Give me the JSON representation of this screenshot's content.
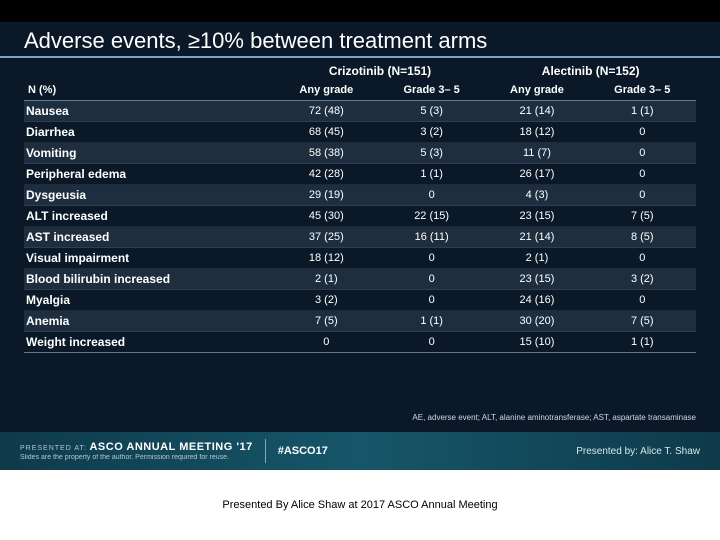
{
  "title": "Adverse events, ≥10% between treatment arms",
  "colors": {
    "slide_bg": "#0a1828",
    "title_rule": "#7aa5c4",
    "text": "#ffffff",
    "stripe": "rgba(120,150,170,0.18)",
    "banner_grad_left": "#0e3a4a",
    "banner_grad_mid": "#16566a"
  },
  "table": {
    "n_label": "N (%)",
    "groups": [
      {
        "label": "Crizotinib (N=151)"
      },
      {
        "label": "Alectinib (N=152)"
      }
    ],
    "subcols": [
      "Any grade",
      "Grade  3– 5",
      "Any grade",
      "Grade 3– 5"
    ],
    "rows": [
      {
        "label": "Nausea",
        "cells": [
          "72 (48)",
          "5 (3)",
          "21 (14)",
          "1 (1)"
        ],
        "striped": true
      },
      {
        "label": "Diarrhea",
        "cells": [
          "68 (45)",
          "3 (2)",
          "18 (12)",
          "0"
        ],
        "striped": false
      },
      {
        "label": "Vomiting",
        "cells": [
          "58 (38)",
          "5 (3)",
          "11 (7)",
          "0"
        ],
        "striped": true
      },
      {
        "label": "Peripheral edema",
        "cells": [
          "42 (28)",
          "1 (1)",
          "26 (17)",
          "0"
        ],
        "striped": false
      },
      {
        "label": "Dysgeusia",
        "cells": [
          "29 (19)",
          "0",
          "4 (3)",
          "0"
        ],
        "striped": true
      },
      {
        "label": "ALT increased",
        "cells": [
          "45 (30)",
          "22 (15)",
          "23 (15)",
          "7 (5)"
        ],
        "striped": false
      },
      {
        "label": "AST increased",
        "cells": [
          "37 (25)",
          "16 (11)",
          "21 (14)",
          "8 (5)"
        ],
        "striped": true
      },
      {
        "label": "Visual impairment",
        "cells": [
          "18 (12)",
          "0",
          "2 (1)",
          "0"
        ],
        "striped": false
      },
      {
        "label": "Blood bilirubin increased",
        "cells": [
          "2 (1)",
          "0",
          "23 (15)",
          "3 (2)"
        ],
        "striped": true
      },
      {
        "label": "Myalgia",
        "cells": [
          "3 (2)",
          "0",
          "24 (16)",
          "0"
        ],
        "striped": false
      },
      {
        "label": "Anemia",
        "cells": [
          "7 (5)",
          "1 (1)",
          "30 (20)",
          "7 (5)"
        ],
        "striped": true
      },
      {
        "label": "Weight increased",
        "cells": [
          "0",
          "0",
          "15 (10)",
          "1 (1)"
        ],
        "striped": false
      }
    ]
  },
  "footnote": "AE, adverse event; ALT, alanine aminotransferase; AST, aspartate transaminase",
  "banner": {
    "presented_at_label": "PRESENTED AT:",
    "meeting": "ASCO ANNUAL MEETING '17",
    "hashtag": "#ASCO17",
    "disclaimer": "Slides are the property of the author. Permission required for reuse.",
    "presented_by_label": "Presented by:",
    "presenter": "Alice T. Shaw"
  },
  "caption": "Presented By Alice Shaw at 2017 ASCO Annual Meeting"
}
